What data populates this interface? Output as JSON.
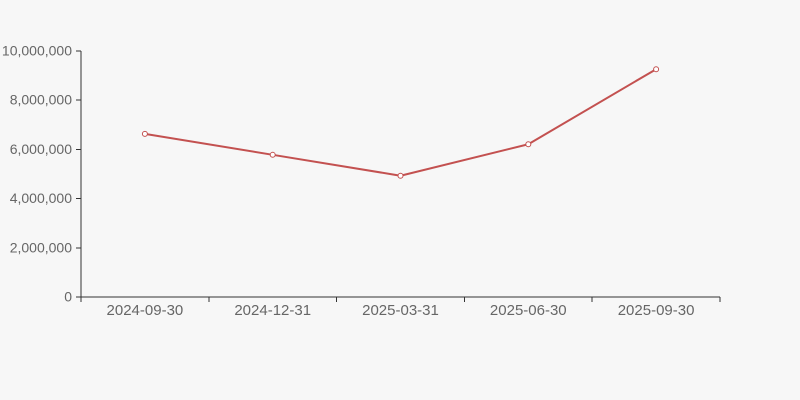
{
  "chart_data": {
    "type": "line",
    "title": "",
    "categories": [
      "2024-09-30",
      "2024-12-31",
      "2025-03-31",
      "2025-06-30",
      "2025-09-30"
    ],
    "series": [
      {
        "name": "value",
        "values": [
          6630000,
          5780000,
          4930000,
          6210000,
          9260000
        ]
      }
    ],
    "xlabel": "",
    "ylabel": "",
    "ylim": [
      0,
      10000000
    ],
    "y_ticks": [
      0,
      2000000,
      4000000,
      6000000,
      8000000,
      10000000
    ],
    "y_tick_labels": [
      "0",
      "2,000,000",
      "4,000,000",
      "6,000,000",
      "8,000,000",
      "10,000,000"
    ],
    "grid": false,
    "legend_position": "none",
    "marker_style": "hollow-circle",
    "colors": {
      "line": "#c35150",
      "marker_fill": "#ffffff",
      "axis": "#333333",
      "label": "#666666",
      "background": "#f7f7f7"
    }
  }
}
